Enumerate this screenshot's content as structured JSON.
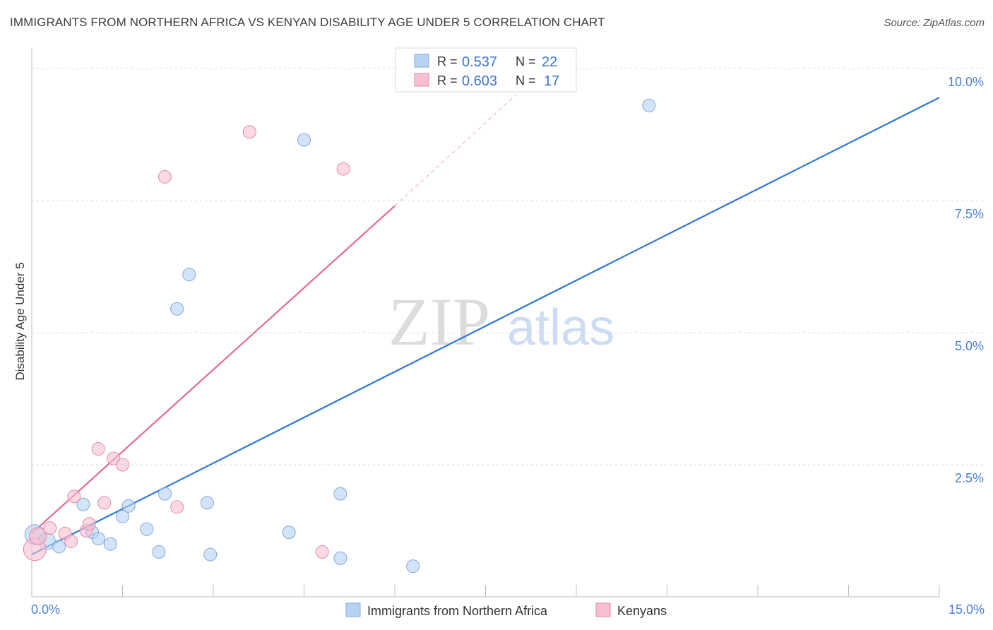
{
  "title": "IMMIGRANTS FROM NORTHERN AFRICA VS KENYAN DISABILITY AGE UNDER 5 CORRELATION CHART",
  "source": "Source: ZipAtlas.com",
  "watermark": {
    "zip": "ZIP",
    "atlas": "atlas"
  },
  "colors": {
    "blue": "#4a86d8",
    "blue_fill": "#b8d2f4",
    "pink": "#e66a94",
    "pink_fill": "#f7c0d0",
    "tick": "#4a7fd0",
    "grid": "#d9d9d9"
  },
  "chart_data": {
    "type": "scatter",
    "ylabel": "Disability Age Under 5",
    "xlim": [
      0,
      15
    ],
    "ylim": [
      0,
      10.5
    ],
    "x_tick_labels": [
      {
        "value": 0,
        "label": "0.0%"
      },
      {
        "value": 15,
        "label": "15.0%"
      }
    ],
    "y_tick_labels": [
      {
        "value": 2.5,
        "label": "2.5%"
      },
      {
        "value": 5.0,
        "label": "5.0%"
      },
      {
        "value": 7.5,
        "label": "7.5%"
      },
      {
        "value": 10.0,
        "label": "10.0%"
      }
    ],
    "legend": [
      {
        "r_label": "R =",
        "r_value": "0.537",
        "n_label": "N =",
        "n_value": "22"
      },
      {
        "r_label": "R =",
        "r_value": "0.603",
        "n_label": "N =",
        "n_value": "17"
      }
    ],
    "series": [
      {
        "name": "Immigrants from Northern Africa",
        "color": "#4a86d8",
        "points": [
          [
            0.05,
            1.18,
            14
          ],
          [
            0.25,
            1.05,
            12
          ],
          [
            0.45,
            0.95,
            9
          ],
          [
            0.85,
            1.75,
            9
          ],
          [
            1.0,
            1.22,
            9
          ],
          [
            1.1,
            1.1,
            9
          ],
          [
            1.3,
            1.0,
            9
          ],
          [
            1.5,
            1.52,
            9
          ],
          [
            1.6,
            1.72,
            9
          ],
          [
            1.9,
            1.28,
            9
          ],
          [
            2.1,
            0.85,
            9
          ],
          [
            2.2,
            1.95,
            9
          ],
          [
            2.4,
            5.45,
            9
          ],
          [
            2.6,
            6.1,
            9
          ],
          [
            2.9,
            1.78,
            9
          ],
          [
            2.95,
            0.8,
            9
          ],
          [
            4.25,
            1.22,
            9
          ],
          [
            4.5,
            8.65,
            9
          ],
          [
            5.1,
            1.95,
            9
          ],
          [
            5.1,
            0.73,
            9
          ],
          [
            6.3,
            0.58,
            9
          ],
          [
            10.2,
            9.3,
            9
          ]
        ],
        "trend": {
          "x0": 0.0,
          "y0": 0.8,
          "x1": 15.0,
          "y1": 9.45
        }
      },
      {
        "name": "Kenyans",
        "color": "#e66a94",
        "points": [
          [
            0.05,
            0.9,
            16
          ],
          [
            0.1,
            1.15,
            12
          ],
          [
            0.3,
            1.3,
            9
          ],
          [
            0.55,
            1.2,
            9
          ],
          [
            0.65,
            1.05,
            9
          ],
          [
            0.7,
            1.9,
            9
          ],
          [
            0.9,
            1.25,
            9
          ],
          [
            0.95,
            1.38,
            9
          ],
          [
            1.1,
            2.8,
            9
          ],
          [
            1.2,
            1.78,
            9
          ],
          [
            1.35,
            2.62,
            9
          ],
          [
            1.5,
            2.5,
            9
          ],
          [
            2.2,
            7.95,
            9
          ],
          [
            2.4,
            1.7,
            9
          ],
          [
            3.6,
            8.8,
            9
          ],
          [
            4.8,
            0.85,
            9
          ],
          [
            5.15,
            8.1,
            9
          ]
        ],
        "trend": {
          "x0": 0.0,
          "y0": 1.2,
          "x1": 6.0,
          "y1": 7.4
        },
        "trend_dashed": {
          "x0": 6.0,
          "y0": 7.4,
          "x1": 8.0,
          "y1": 9.5
        }
      }
    ]
  }
}
